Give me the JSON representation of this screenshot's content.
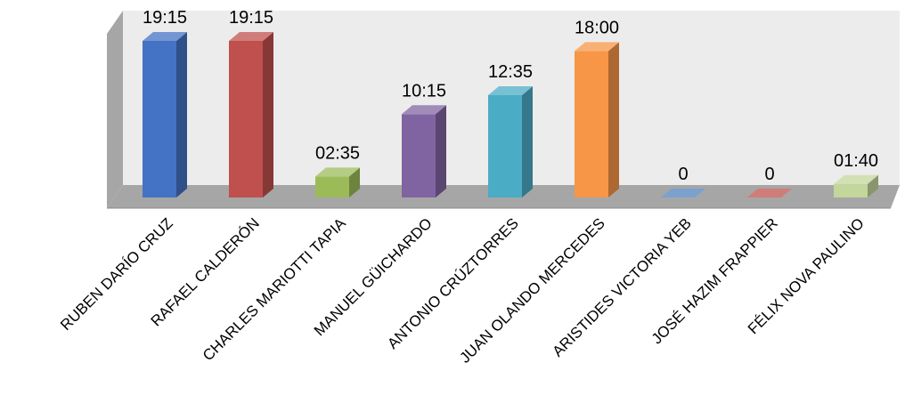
{
  "chart_data": {
    "type": "bar",
    "style": "3d-clustered-column",
    "title": "",
    "xlabel": "",
    "ylabel": "",
    "unit": "hours:minutes",
    "categories": [
      "RUBEN DARÍO CRUZ",
      "RAFAEL CALDERÓN",
      "CHARLES MARIOTTI TAPIA",
      "MANUEL GÜICHARDO",
      "ANTONIO CRÚZTORRES",
      "JUAN OLANDO MERCEDES",
      "ARISTIDES VICTORIA YEB",
      "JOSÉ  HAZIM FRAPPIER",
      "FÉLIX NOVA PAULINO"
    ],
    "values": [
      19.25,
      19.25,
      2.5833,
      10.25,
      12.5833,
      18.0,
      0,
      0,
      1.6667
    ],
    "data_labels": [
      "19:15",
      "19:15",
      "02:35",
      "10:15",
      "12:35",
      "18:00",
      "0",
      "0",
      "01:40"
    ],
    "colors": [
      "#4472C4",
      "#C0504D",
      "#9BBB59",
      "#8064A2",
      "#4BACC6",
      "#F79646",
      "#4F81BD",
      "#C0504D",
      "#C3D69B"
    ],
    "ylim": [
      0,
      20
    ],
    "grid": false,
    "legend": "none"
  }
}
